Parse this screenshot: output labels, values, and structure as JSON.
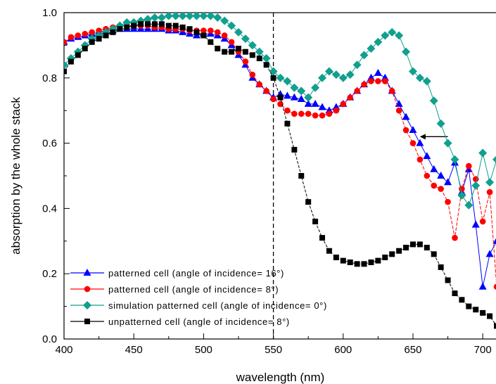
{
  "chart_data": {
    "type": "line",
    "title": "",
    "xlabel": "wavelength (nm)",
    "ylabel": "absorption by the whole stack",
    "xlim": [
      400,
      710
    ],
    "ylim": [
      0.0,
      1.0
    ],
    "x_ticks": [
      400,
      450,
      500,
      550,
      600,
      650,
      700
    ],
    "x_tick_labels": [
      "400",
      "450",
      "500",
      "550",
      "600",
      "650",
      "700"
    ],
    "y_ticks": [
      0.0,
      0.2,
      0.4,
      0.6,
      0.8,
      1.0
    ],
    "y_tick_labels": [
      "0.0",
      "0.2",
      "0.4",
      "0.6",
      "0.8",
      "1.0"
    ],
    "grid": false,
    "legend_position": "bottom-left",
    "annotations": [
      {
        "type": "vertical-dashed-line",
        "x": 550
      },
      {
        "type": "arrow",
        "direction": "left",
        "x_from": 675,
        "x_to": 655,
        "y": 0.62
      }
    ],
    "series": [
      {
        "name": "patterned cell (angle of incidence= 16°)",
        "color": "#0000ff",
        "marker": "triangle",
        "x": [
          400,
          405,
          410,
          415,
          420,
          425,
          430,
          435,
          440,
          445,
          450,
          455,
          460,
          465,
          470,
          475,
          480,
          485,
          490,
          495,
          500,
          505,
          510,
          515,
          520,
          525,
          530,
          535,
          540,
          545,
          550,
          555,
          560,
          565,
          570,
          575,
          580,
          585,
          590,
          595,
          600,
          605,
          610,
          615,
          620,
          625,
          630,
          635,
          640,
          645,
          650,
          655,
          660,
          665,
          670,
          675,
          680,
          685,
          690,
          695,
          700,
          705,
          710
        ],
        "values": [
          0.91,
          0.92,
          0.925,
          0.93,
          0.935,
          0.94,
          0.945,
          0.945,
          0.95,
          0.95,
          0.95,
          0.95,
          0.95,
          0.95,
          0.95,
          0.945,
          0.945,
          0.94,
          0.935,
          0.93,
          0.935,
          0.935,
          0.93,
          0.92,
          0.9,
          0.87,
          0.84,
          0.8,
          0.78,
          0.76,
          0.74,
          0.75,
          0.745,
          0.74,
          0.735,
          0.72,
          0.72,
          0.71,
          0.7,
          0.71,
          0.72,
          0.74,
          0.76,
          0.78,
          0.8,
          0.815,
          0.8,
          0.76,
          0.72,
          0.68,
          0.64,
          0.6,
          0.56,
          0.52,
          0.5,
          0.48,
          0.54,
          0.45,
          0.52,
          0.35,
          0.16,
          0.26,
          0.3
        ]
      },
      {
        "name": "patterned cell (angle of incidence= 8°)",
        "color": "#ff0000",
        "marker": "circle",
        "x": [
          400,
          405,
          410,
          415,
          420,
          425,
          430,
          435,
          440,
          445,
          450,
          455,
          460,
          465,
          470,
          475,
          480,
          485,
          490,
          495,
          500,
          505,
          510,
          515,
          520,
          525,
          530,
          535,
          540,
          545,
          550,
          555,
          560,
          565,
          570,
          575,
          580,
          585,
          590,
          595,
          600,
          605,
          610,
          615,
          620,
          625,
          630,
          635,
          640,
          645,
          650,
          655,
          660,
          665,
          670,
          675,
          680,
          685,
          690,
          695,
          700,
          705,
          710
        ],
        "values": [
          0.91,
          0.925,
          0.93,
          0.935,
          0.94,
          0.945,
          0.95,
          0.955,
          0.96,
          0.96,
          0.96,
          0.96,
          0.96,
          0.955,
          0.955,
          0.95,
          0.95,
          0.95,
          0.945,
          0.945,
          0.945,
          0.945,
          0.94,
          0.93,
          0.91,
          0.88,
          0.85,
          0.81,
          0.78,
          0.76,
          0.735,
          0.72,
          0.7,
          0.69,
          0.69,
          0.69,
          0.685,
          0.685,
          0.69,
          0.7,
          0.72,
          0.74,
          0.76,
          0.78,
          0.79,
          0.79,
          0.79,
          0.76,
          0.7,
          0.64,
          0.6,
          0.55,
          0.5,
          0.47,
          0.46,
          0.42,
          0.31,
          0.46,
          0.53,
          0.49,
          0.36,
          0.45,
          0.16
        ]
      },
      {
        "name": "simulation patterned cell (angle of incidence= 0°)",
        "color": "#119f8f",
        "marker": "diamond",
        "x": [
          400,
          405,
          410,
          415,
          420,
          425,
          430,
          435,
          440,
          445,
          450,
          455,
          460,
          465,
          470,
          475,
          480,
          485,
          490,
          495,
          500,
          505,
          510,
          515,
          520,
          525,
          530,
          535,
          540,
          545,
          550,
          555,
          560,
          565,
          570,
          575,
          580,
          585,
          590,
          595,
          600,
          605,
          610,
          615,
          620,
          625,
          630,
          635,
          640,
          645,
          650,
          655,
          660,
          665,
          670,
          675,
          680,
          685,
          690,
          695,
          700,
          705,
          710
        ],
        "values": [
          0.84,
          0.86,
          0.88,
          0.9,
          0.92,
          0.93,
          0.94,
          0.95,
          0.96,
          0.97,
          0.97,
          0.975,
          0.98,
          0.985,
          0.985,
          0.99,
          0.99,
          0.99,
          0.99,
          0.99,
          0.99,
          0.99,
          0.985,
          0.975,
          0.96,
          0.94,
          0.92,
          0.9,
          0.88,
          0.86,
          0.82,
          0.8,
          0.79,
          0.77,
          0.76,
          0.74,
          0.77,
          0.8,
          0.82,
          0.81,
          0.8,
          0.81,
          0.84,
          0.87,
          0.89,
          0.91,
          0.93,
          0.94,
          0.93,
          0.88,
          0.82,
          0.8,
          0.79,
          0.73,
          0.66,
          0.6,
          0.55,
          0.44,
          0.41,
          0.47,
          0.57,
          0.48,
          0.55
        ]
      },
      {
        "name": "unpatterned cell (angle of incidence= 8°)",
        "color": "#000000",
        "marker": "square",
        "x": [
          400,
          405,
          410,
          415,
          420,
          425,
          430,
          435,
          440,
          445,
          450,
          455,
          460,
          465,
          470,
          475,
          480,
          485,
          490,
          495,
          500,
          505,
          510,
          515,
          520,
          525,
          530,
          535,
          540,
          545,
          550,
          555,
          560,
          565,
          570,
          575,
          580,
          585,
          590,
          595,
          600,
          605,
          610,
          615,
          620,
          625,
          630,
          635,
          640,
          645,
          650,
          655,
          660,
          665,
          670,
          675,
          680,
          685,
          690,
          695,
          700,
          705,
          710
        ],
        "values": [
          0.82,
          0.85,
          0.87,
          0.89,
          0.91,
          0.92,
          0.93,
          0.94,
          0.95,
          0.955,
          0.96,
          0.965,
          0.965,
          0.965,
          0.965,
          0.96,
          0.96,
          0.955,
          0.95,
          0.94,
          0.93,
          0.91,
          0.89,
          0.88,
          0.88,
          0.89,
          0.88,
          0.87,
          0.86,
          0.84,
          0.8,
          0.74,
          0.66,
          0.58,
          0.5,
          0.42,
          0.36,
          0.31,
          0.27,
          0.25,
          0.24,
          0.235,
          0.23,
          0.23,
          0.235,
          0.24,
          0.25,
          0.26,
          0.27,
          0.28,
          0.29,
          0.29,
          0.28,
          0.26,
          0.22,
          0.18,
          0.14,
          0.12,
          0.1,
          0.09,
          0.08,
          0.07,
          0.04
        ]
      }
    ]
  }
}
